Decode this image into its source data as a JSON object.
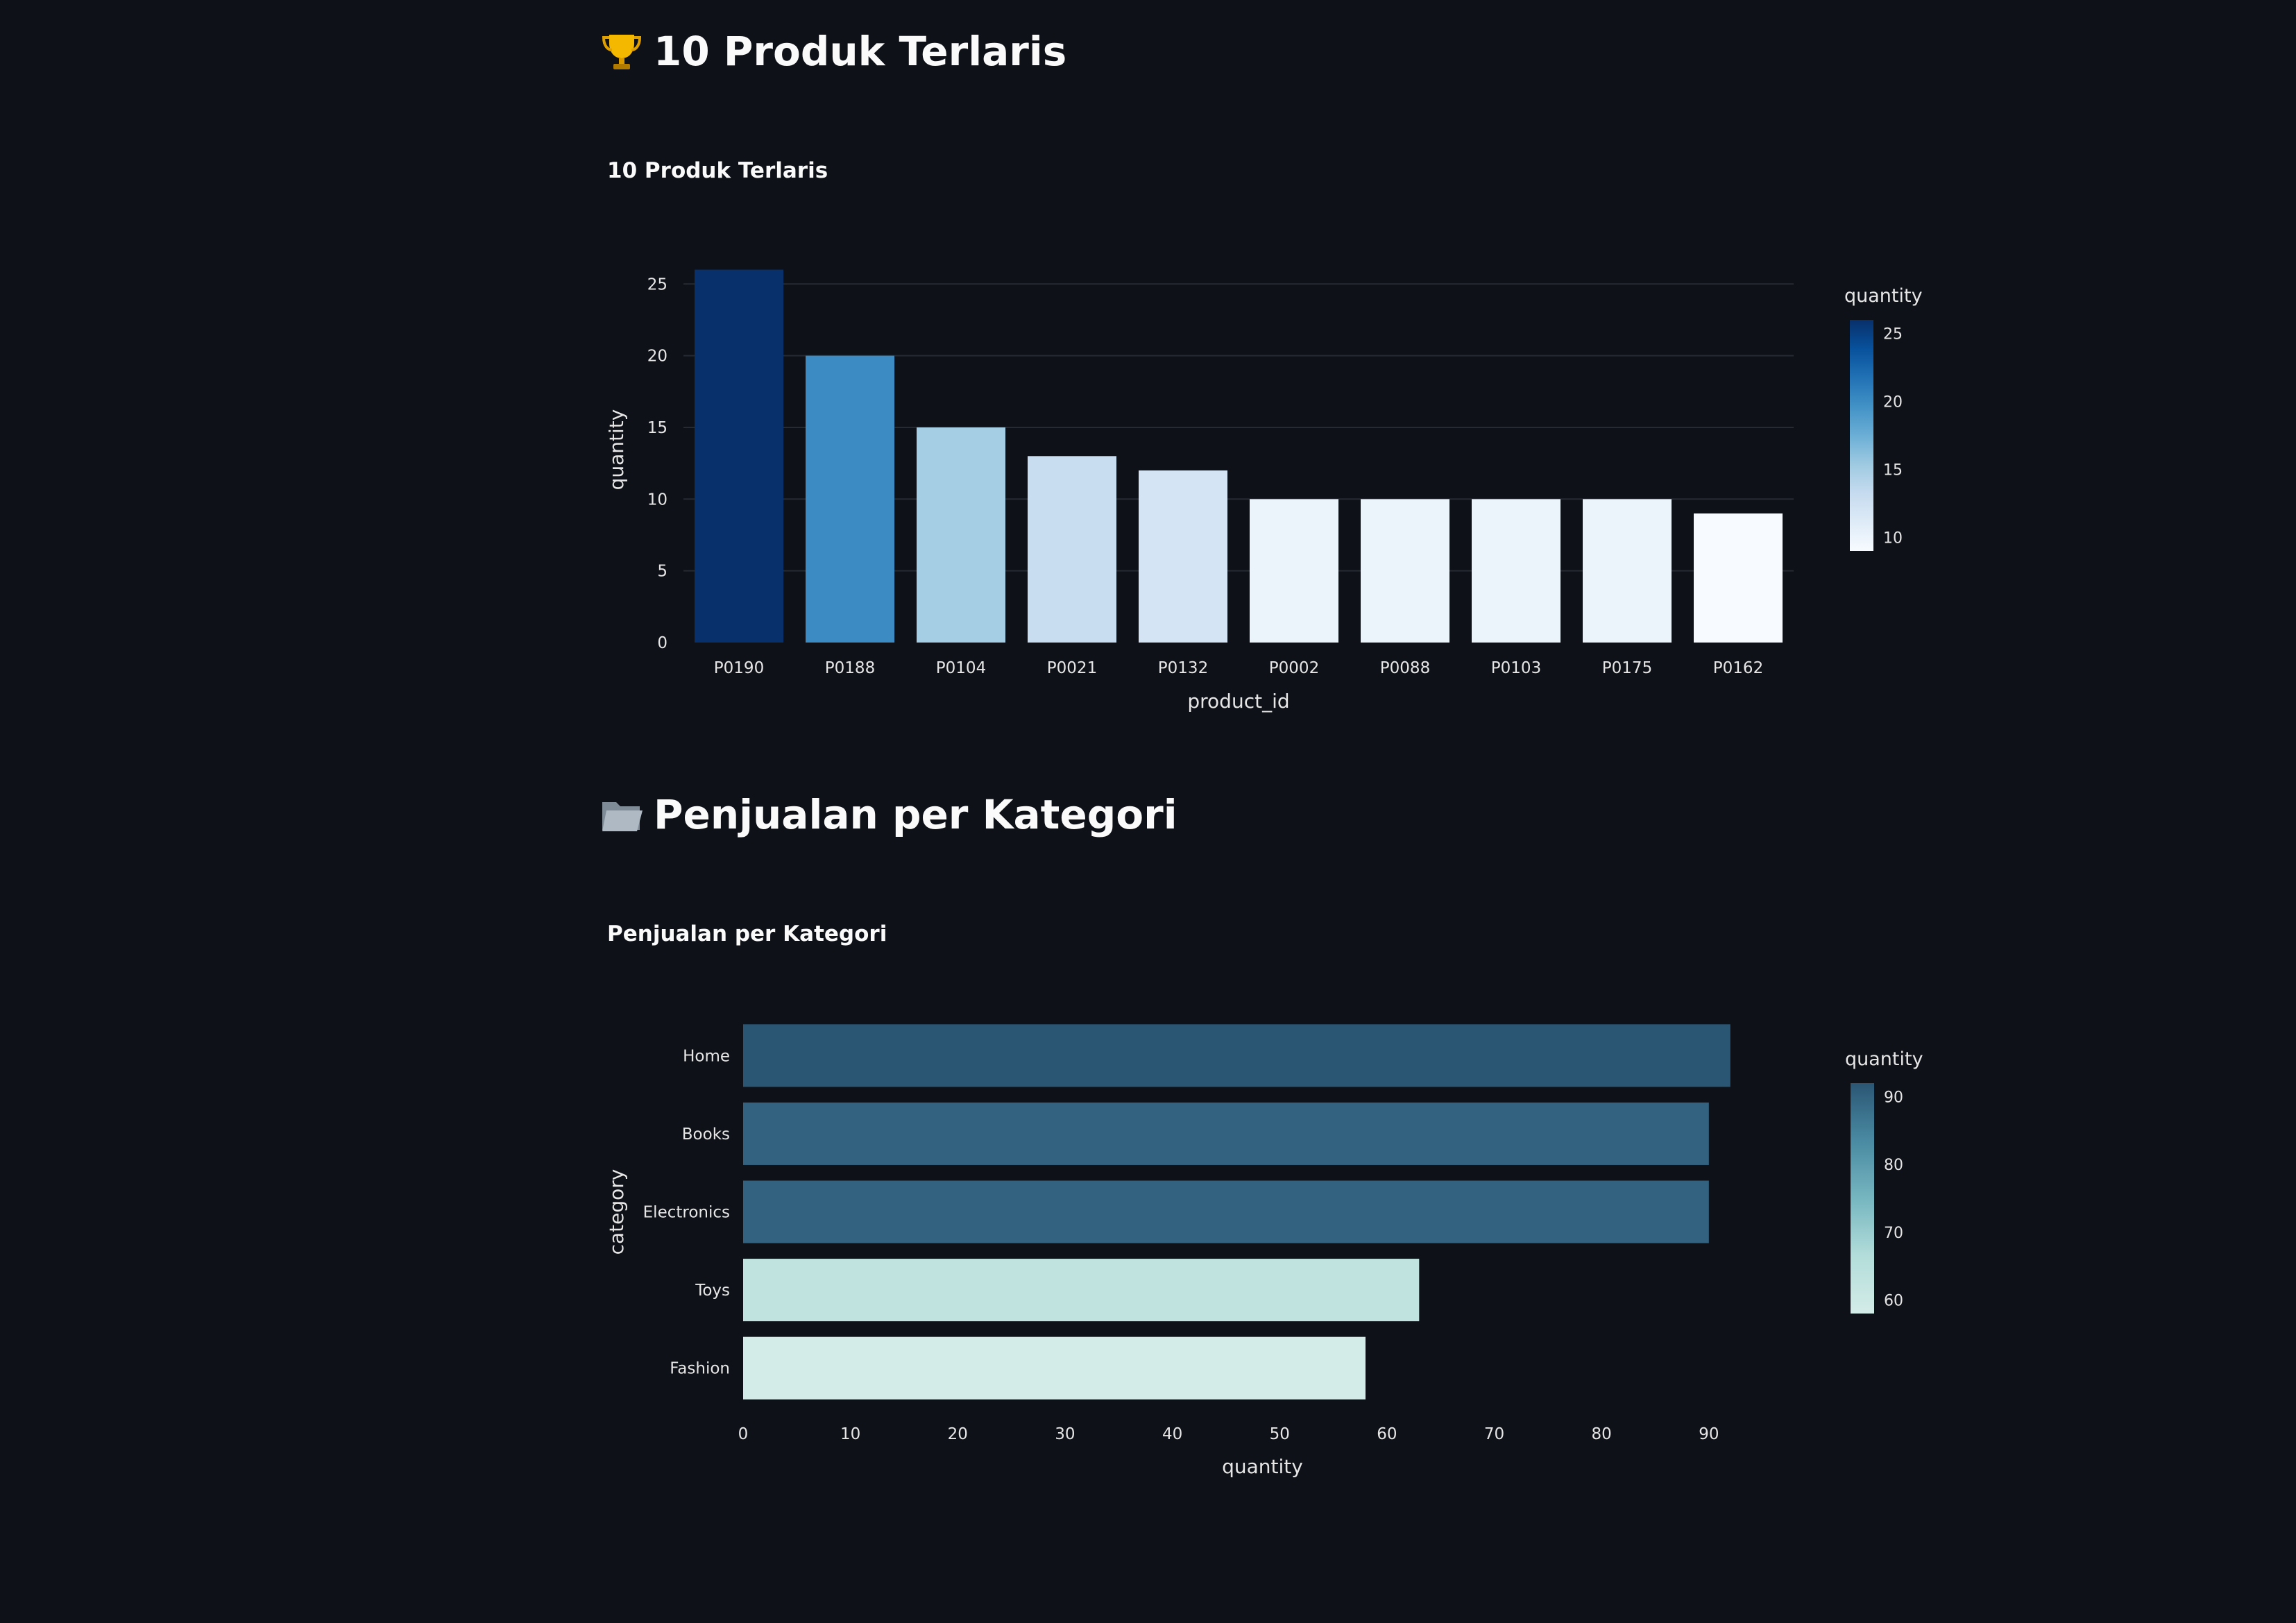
{
  "sections": [
    {
      "header": "10 Produk Terlaris",
      "header_icon": "trophy-icon",
      "chart_title": "10 Produk Terlaris"
    },
    {
      "header": "Penjualan per Kategori",
      "header_icon": "folder-icon",
      "chart_title": "Penjualan per Kategori"
    }
  ],
  "colors": {
    "background": "#0e1117",
    "text": "#fafafa",
    "gridline": "#262a33"
  },
  "chart_data": [
    {
      "type": "bar",
      "orientation": "vertical",
      "title": "10 Produk Terlaris",
      "xlabel": "product_id",
      "ylabel": "quantity",
      "categories": [
        "P0190",
        "P0188",
        "P0104",
        "P0021",
        "P0132",
        "P0002",
        "P0088",
        "P0103",
        "P0175",
        "P0162"
      ],
      "values": [
        26,
        20,
        15,
        13,
        12,
        10,
        10,
        10,
        10,
        9
      ],
      "ylim": [
        0,
        26.9
      ],
      "yticks": [
        0,
        5,
        10,
        15,
        20,
        25
      ],
      "grid": true,
      "colorscale": "Blues",
      "colorbar": {
        "title": "quantity",
        "ticks": [
          10,
          15,
          20,
          25
        ],
        "range": [
          9,
          26
        ]
      }
    },
    {
      "type": "bar",
      "orientation": "horizontal",
      "title": "Penjualan per Kategori",
      "xlabel": "quantity",
      "ylabel": "category",
      "categories": [
        "Home",
        "Books",
        "Electronics",
        "Toys",
        "Fashion"
      ],
      "values": [
        92,
        90,
        90,
        63,
        58
      ],
      "xlim": [
        0,
        96.8
      ],
      "xticks": [
        0,
        10,
        20,
        30,
        40,
        50,
        60,
        70,
        80,
        90
      ],
      "grid": false,
      "colorscale": "Teal",
      "colorbar": {
        "title": "quantity",
        "ticks": [
          60,
          70,
          80,
          90
        ],
        "range": [
          58,
          92
        ]
      }
    }
  ]
}
